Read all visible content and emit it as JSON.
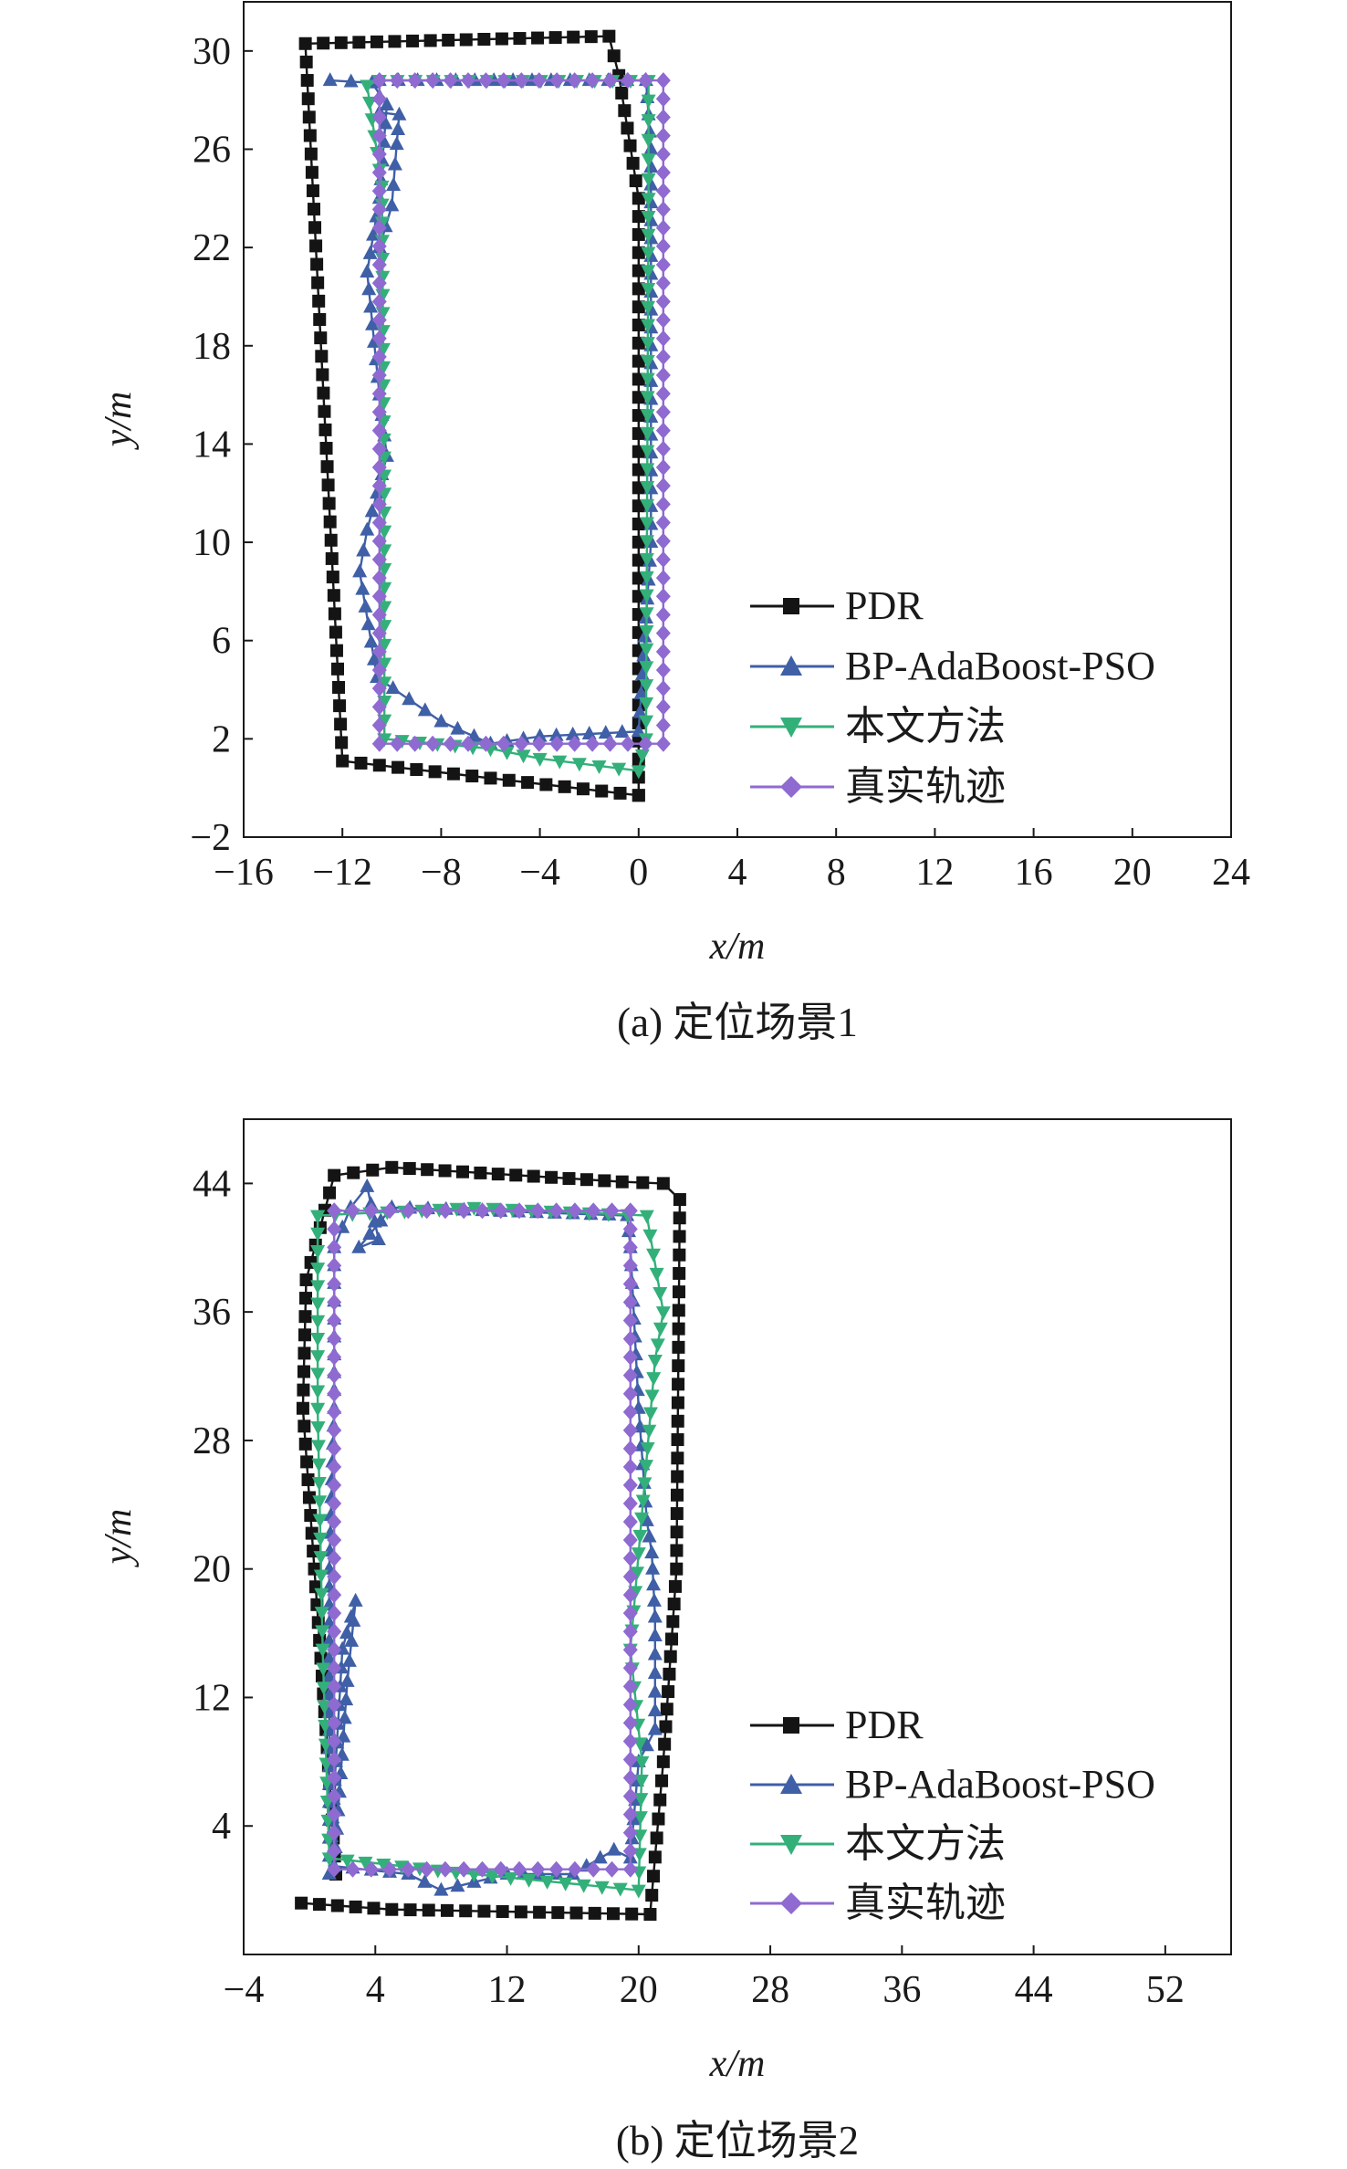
{
  "figure": {
    "charts_count": 2
  },
  "legend_entries": [
    "PDR",
    "BP-AdaBoost-PSO",
    "本文方法",
    "真实轨迹"
  ],
  "colors": {
    "PDR": "#141414",
    "BP-AdaBoost-PSO": "#3f5fa6",
    "本文方法": "#33b07a",
    "真实轨迹": "#8f6ad1",
    "axis": "#1a1a1a"
  },
  "chart_data": [
    {
      "type": "line",
      "caption": "(a) 定位场景1",
      "xlabel": "x/m",
      "ylabel": "y/m",
      "xlim": [
        -16,
        24
      ],
      "ylim": [
        -2,
        32
      ],
      "xticks": [
        -16,
        -12,
        -8,
        -4,
        0,
        4,
        8,
        12,
        16,
        20,
        24
      ],
      "yticks": [
        -2,
        2,
        6,
        10,
        14,
        18,
        22,
        26,
        30
      ],
      "xtick_labels": [
        "−16",
        "−12",
        "−8",
        "−4",
        "0",
        "4",
        "8",
        "12",
        "16",
        "20",
        "24"
      ],
      "ytick_labels": [
        "−2",
        "2",
        "6",
        "10",
        "14",
        "18",
        "22",
        "26",
        "30"
      ],
      "legend_position": "lower-right",
      "grid": false,
      "series": [
        {
          "name": "PDR",
          "marker": "square",
          "vertices": [
            [
              0,
              -0.3
            ],
            [
              -12,
              1.1
            ],
            [
              -13.5,
              30.3
            ],
            [
              -1.2,
              30.6
            ],
            [
              -0.8,
              29
            ],
            [
              0,
              24
            ],
            [
              0,
              -0.3
            ]
          ]
        },
        {
          "name": "BP-AdaBoost-PSO",
          "marker": "triangle-up",
          "vertices": [
            [
              -12.5,
              28.8
            ],
            [
              -10.8,
              28.7
            ],
            [
              -10.2,
              27.8
            ],
            [
              -10.5,
              24
            ],
            [
              -11,
              21
            ],
            [
              -10.5,
              16
            ],
            [
              -10.2,
              13.5
            ],
            [
              -11,
              10.5
            ],
            [
              -11.3,
              8.8
            ],
            [
              -10.6,
              4.5
            ],
            [
              -8,
              2.7
            ],
            [
              -6,
              1.8
            ],
            [
              -4,
              2.1
            ],
            [
              -2,
              2.2
            ],
            [
              0,
              2.3
            ],
            [
              0.5,
              10
            ],
            [
              0.5,
              26
            ],
            [
              0.3,
              28.8
            ],
            [
              -2,
              28.8
            ],
            [
              -10.5,
              28.8
            ],
            [
              -10.5,
              27.5
            ],
            [
              -9.7,
              27.4
            ],
            [
              -9.8,
              26.2
            ],
            [
              -10,
              23.7
            ],
            [
              -10.5,
              22
            ]
          ]
        },
        {
          "name": "本文方法",
          "marker": "triangle-down",
          "vertices": [
            [
              -10.5,
              28.8
            ],
            [
              -11,
              28.6
            ],
            [
              -10.4,
              24.5
            ],
            [
              -10.3,
              12
            ],
            [
              -10.3,
              2
            ],
            [
              -6,
              1.6
            ],
            [
              -4,
              1.2
            ],
            [
              0,
              0.7
            ],
            [
              0.3,
              2
            ],
            [
              0.4,
              24
            ],
            [
              0.4,
              28.8
            ],
            [
              -10.5,
              28.8
            ]
          ]
        },
        {
          "name": "真实轨迹",
          "marker": "diamond",
          "vertices": [
            [
              -10.5,
              28.8
            ],
            [
              1,
              28.8
            ],
            [
              1,
              1.8
            ],
            [
              -10.5,
              1.8
            ],
            [
              -10.5,
              28.8
            ]
          ]
        }
      ]
    },
    {
      "type": "line",
      "caption": "(b) 定位场景2",
      "xlabel": "x/m",
      "ylabel": "y/m",
      "xlim": [
        -4,
        56
      ],
      "ylim": [
        -4,
        48
      ],
      "xticks": [
        -4,
        4,
        12,
        20,
        28,
        36,
        44,
        52
      ],
      "yticks": [
        4,
        12,
        20,
        28,
        36,
        44
      ],
      "xtick_labels": [
        "−4",
        "4",
        "12",
        "20",
        "28",
        "36",
        "44",
        "52"
      ],
      "ytick_labels": [
        "4",
        "12",
        "20",
        "28",
        "36",
        "44"
      ],
      "legend_position": "lower-right",
      "grid": false,
      "series": [
        {
          "name": "PDR",
          "marker": "square",
          "vertices": [
            [
              -0.5,
              -0.8
            ],
            [
              5,
              -1.2
            ],
            [
              20.7,
              -1.5
            ],
            [
              21.5,
              8
            ],
            [
              22.3,
              20
            ],
            [
              22.5,
              43
            ],
            [
              21.5,
              44
            ],
            [
              19,
              44.1
            ],
            [
              5,
              45
            ],
            [
              1.5,
              44.5
            ],
            [
              -0.2,
              38
            ],
            [
              -0.4,
              30
            ],
            [
              0.3,
              20
            ],
            [
              1,
              10
            ],
            [
              1.6,
              1
            ]
          ]
        },
        {
          "name": "BP-AdaBoost-PSO",
          "marker": "triangle-up",
          "vertices": [
            [
              1.2,
              1
            ],
            [
              2,
              15
            ],
            [
              2.8,
              18
            ],
            [
              2.3,
              13
            ],
            [
              1.5,
              1.5
            ],
            [
              6,
              1
            ],
            [
              8,
              0
            ],
            [
              12,
              1
            ],
            [
              16,
              1
            ],
            [
              18.5,
              2.5
            ],
            [
              19.5,
              2
            ],
            [
              20,
              8
            ],
            [
              21,
              10
            ],
            [
              21,
              17
            ],
            [
              20.8,
              21
            ],
            [
              20.5,
              23
            ],
            [
              20,
              30
            ],
            [
              19.5,
              40
            ],
            [
              19.3,
              42
            ],
            [
              5,
              42.5
            ],
            [
              3,
              40
            ],
            [
              4.2,
              40.5
            ],
            [
              3.5,
              43.8
            ],
            [
              2.5,
              42.5
            ],
            [
              1.5,
              40
            ],
            [
              1.5,
              30
            ],
            [
              1.2,
              20
            ],
            [
              1.2,
              1
            ]
          ]
        },
        {
          "name": "本文方法",
          "marker": "triangle-down",
          "vertices": [
            [
              0.5,
              42
            ],
            [
              0.5,
              30
            ],
            [
              0.8,
              15
            ],
            [
              1.2,
              2
            ],
            [
              10,
              1
            ],
            [
              20,
              0
            ],
            [
              20.2,
              8
            ],
            [
              19.5,
              15
            ],
            [
              20,
              21
            ],
            [
              21,
              33
            ],
            [
              21.5,
              36
            ],
            [
              20.5,
              42
            ],
            [
              10,
              42.5
            ],
            [
              0.5,
              42
            ]
          ]
        },
        {
          "name": "真实轨迹",
          "marker": "diamond",
          "vertices": [
            [
              1.5,
              42.3
            ],
            [
              19.5,
              42.3
            ],
            [
              19.5,
              1.3
            ],
            [
              1.5,
              1.3
            ],
            [
              1.5,
              42.3
            ]
          ]
        }
      ]
    }
  ]
}
